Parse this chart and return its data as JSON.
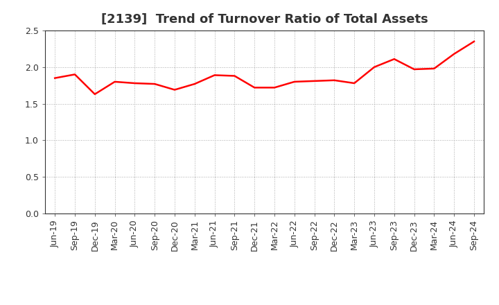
{
  "title": "[2139]  Trend of Turnover Ratio of Total Assets",
  "labels": [
    "Jun-19",
    "Sep-19",
    "Dec-19",
    "Mar-20",
    "Jun-20",
    "Sep-20",
    "Dec-20",
    "Mar-21",
    "Jun-21",
    "Sep-21",
    "Dec-21",
    "Mar-22",
    "Jun-22",
    "Sep-22",
    "Dec-22",
    "Mar-23",
    "Jun-23",
    "Sep-23",
    "Dec-23",
    "Mar-24",
    "Jun-24",
    "Sep-24"
  ],
  "values": [
    1.85,
    1.9,
    1.63,
    1.8,
    1.78,
    1.77,
    1.69,
    1.77,
    1.89,
    1.88,
    1.72,
    1.72,
    1.8,
    1.81,
    1.82,
    1.78,
    2.0,
    2.11,
    1.97,
    1.98,
    2.18,
    2.35
  ],
  "ylim": [
    0.0,
    2.5
  ],
  "yticks": [
    0.0,
    0.5,
    1.0,
    1.5,
    2.0,
    2.5
  ],
  "line_color": "#ff0000",
  "line_width": 1.8,
  "bg_color": "#ffffff",
  "grid_color": "#aaaaaa",
  "title_fontsize": 13,
  "tick_fontsize": 9,
  "title_color": "#333333"
}
